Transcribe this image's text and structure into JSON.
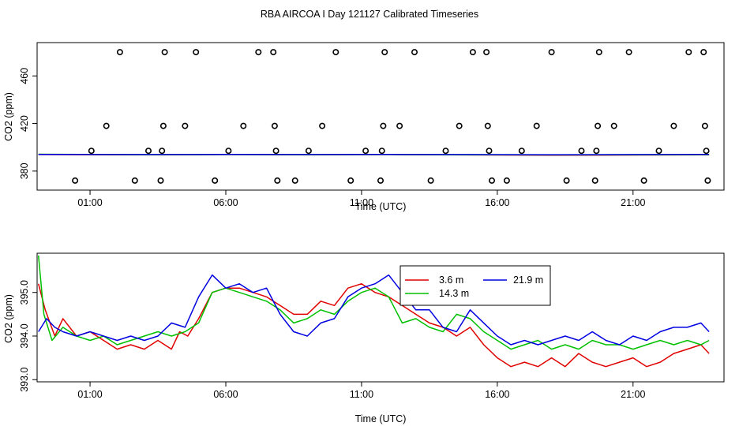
{
  "title": "RBA AIRCOA I  Day 121127  Calibrated Timeseries",
  "colors": {
    "red": "#e00000",
    "green": "#00c000",
    "blue": "#0000e0",
    "black": "#000000"
  },
  "chart_data": [
    {
      "type": "scatter+line",
      "xlabel": "Time (UTC)",
      "ylabel": "CO2 (ppm)",
      "xlim": [
        -0.95,
        24.35
      ],
      "ylim": [
        364,
        488
      ],
      "x_ticks": [
        1,
        6,
        11,
        16,
        21
      ],
      "x_tick_labels": [
        "01:00",
        "06:00",
        "11:00",
        "16:00",
        "21:00"
      ],
      "y_ticks": [
        380,
        420,
        460
      ],
      "y_tick_labels": [
        "380",
        "420",
        "460"
      ],
      "calibration_points": {
        "marker": "open-circle",
        "points": [
          [
            0.45,
            372
          ],
          [
            1.05,
            397
          ],
          [
            1.6,
            418
          ],
          [
            2.1,
            480
          ],
          [
            2.65,
            372
          ],
          [
            3.15,
            397
          ],
          [
            3.6,
            372
          ],
          [
            3.65,
            397
          ],
          [
            3.7,
            418
          ],
          [
            3.75,
            480
          ],
          [
            4.5,
            418
          ],
          [
            4.9,
            480
          ],
          [
            5.6,
            372
          ],
          [
            6.1,
            397
          ],
          [
            6.65,
            418
          ],
          [
            7.2,
            480
          ],
          [
            7.75,
            480
          ],
          [
            7.8,
            418
          ],
          [
            7.85,
            397
          ],
          [
            7.9,
            372
          ],
          [
            8.55,
            372
          ],
          [
            9.05,
            397
          ],
          [
            9.55,
            418
          ],
          [
            10.05,
            480
          ],
          [
            10.6,
            372
          ],
          [
            11.15,
            397
          ],
          [
            11.7,
            372
          ],
          [
            11.75,
            397
          ],
          [
            11.8,
            418
          ],
          [
            11.85,
            480
          ],
          [
            12.4,
            418
          ],
          [
            12.95,
            480
          ],
          [
            13.55,
            372
          ],
          [
            14.1,
            397
          ],
          [
            14.6,
            418
          ],
          [
            15.1,
            480
          ],
          [
            15.6,
            480
          ],
          [
            15.65,
            418
          ],
          [
            15.7,
            397
          ],
          [
            15.8,
            372
          ],
          [
            16.35,
            372
          ],
          [
            16.9,
            397
          ],
          [
            17.45,
            418
          ],
          [
            18.0,
            480
          ],
          [
            18.55,
            372
          ],
          [
            19.1,
            397
          ],
          [
            19.6,
            372
          ],
          [
            19.65,
            397
          ],
          [
            19.7,
            418
          ],
          [
            19.75,
            480
          ],
          [
            20.3,
            418
          ],
          [
            20.85,
            480
          ],
          [
            21.4,
            372
          ],
          [
            21.95,
            397
          ],
          [
            22.5,
            418
          ],
          [
            23.05,
            480
          ],
          [
            23.6,
            480
          ],
          [
            23.65,
            418
          ],
          [
            23.7,
            397
          ],
          [
            23.75,
            372
          ]
        ]
      },
      "series": [
        {
          "name": "3.6 m",
          "color": "#e00000",
          "x": [
            -0.9,
            3,
            6,
            9,
            12,
            15,
            18,
            21,
            23.8
          ],
          "y": [
            393.9,
            393.7,
            393.9,
            393.8,
            393.9,
            393.6,
            393.4,
            393.5,
            393.7
          ]
        },
        {
          "name": "14.3 m",
          "color": "#00c000",
          "x": [
            -0.9,
            3,
            6,
            9,
            12,
            15,
            18,
            21,
            23.8
          ],
          "y": [
            394.2,
            393.8,
            393.9,
            393.8,
            393.9,
            393.7,
            393.6,
            393.7,
            393.8
          ]
        },
        {
          "name": "21.9 m",
          "color": "#0000e0",
          "x": [
            -0.9,
            3,
            6,
            9,
            12,
            15,
            18,
            21,
            23.8
          ],
          "y": [
            394.0,
            393.9,
            394.0,
            393.9,
            394.0,
            393.9,
            393.8,
            393.9,
            394.0
          ]
        }
      ]
    },
    {
      "type": "line",
      "xlabel": "Time (UTC)",
      "ylabel": "CO2 (ppm)",
      "xlim": [
        -0.95,
        24.35
      ],
      "ylim": [
        392.95,
        395.9
      ],
      "x_ticks": [
        1,
        6,
        11,
        16,
        21
      ],
      "x_tick_labels": [
        "01:00",
        "06:00",
        "11:00",
        "16:00",
        "21:00"
      ],
      "y_ticks": [
        393.0,
        394.0,
        395.0
      ],
      "y_tick_labels": [
        "393.0",
        "394.0",
        "395.0"
      ],
      "legend": {
        "position": "top-center",
        "entries": [
          "3.6 m",
          "14.3 m",
          "21.9 m"
        ]
      },
      "series": [
        {
          "name": "3.6 m",
          "color": "#e00000",
          "x": [
            -0.9,
            -0.65,
            -0.3,
            0,
            0.5,
            1,
            1.5,
            2,
            2.5,
            3,
            3.5,
            4,
            4.3,
            4.6,
            5,
            5.5,
            6,
            6.5,
            7,
            7.5,
            8,
            8.5,
            9,
            9.5,
            10,
            10.5,
            11,
            11.5,
            12,
            12.5,
            13,
            13.5,
            14,
            14.5,
            15,
            15.5,
            16,
            16.5,
            17,
            17.5,
            18,
            18.5,
            19,
            19.5,
            20,
            20.5,
            21,
            21.5,
            22,
            22.5,
            23,
            23.5,
            23.8
          ],
          "y": [
            395.2,
            394.6,
            394.0,
            394.4,
            394.0,
            394.1,
            393.9,
            393.7,
            393.8,
            393.7,
            393.9,
            393.7,
            394.1,
            394.0,
            394.4,
            395.0,
            395.1,
            395.1,
            395.0,
            394.9,
            394.7,
            394.5,
            394.5,
            394.8,
            394.7,
            395.1,
            395.2,
            395.0,
            394.9,
            394.7,
            394.5,
            394.3,
            394.2,
            394.0,
            394.2,
            393.8,
            393.5,
            393.3,
            393.4,
            393.3,
            393.5,
            393.3,
            393.6,
            393.4,
            393.3,
            393.4,
            393.5,
            393.3,
            393.4,
            393.6,
            393.7,
            393.8,
            393.6
          ]
        },
        {
          "name": "14.3 m",
          "color": "#00c000",
          "x": [
            -0.9,
            -0.7,
            -0.4,
            0,
            0.5,
            1,
            1.5,
            2,
            2.5,
            3,
            3.5,
            4,
            4.5,
            5,
            5.5,
            6,
            6.5,
            7,
            7.5,
            8,
            8.5,
            9,
            9.5,
            10,
            10.5,
            11,
            11.5,
            12,
            12.5,
            13,
            13.5,
            14,
            14.5,
            15,
            15.5,
            16,
            16.5,
            17,
            17.5,
            18,
            18.5,
            19,
            19.5,
            20,
            20.5,
            21,
            21.5,
            22,
            22.5,
            23,
            23.5,
            23.8
          ],
          "y": [
            395.85,
            394.5,
            393.9,
            394.2,
            394.0,
            393.9,
            394.0,
            393.8,
            393.9,
            394.0,
            394.1,
            394.0,
            394.1,
            394.3,
            395.0,
            395.1,
            395.0,
            394.9,
            394.8,
            394.6,
            394.3,
            394.4,
            394.6,
            394.5,
            394.8,
            395.0,
            395.1,
            394.9,
            394.3,
            394.4,
            394.2,
            394.1,
            394.5,
            394.4,
            394.1,
            393.9,
            393.7,
            393.8,
            393.9,
            393.7,
            393.8,
            393.7,
            393.9,
            393.8,
            393.8,
            393.7,
            393.8,
            393.9,
            393.8,
            393.9,
            393.8,
            393.9
          ]
        },
        {
          "name": "21.9 m",
          "color": "#0000e0",
          "x": [
            -0.9,
            -0.6,
            -0.3,
            0,
            0.5,
            1,
            1.5,
            2,
            2.5,
            3,
            3.5,
            4,
            4.5,
            5,
            5.5,
            6,
            6.5,
            7,
            7.5,
            8,
            8.5,
            9,
            9.5,
            10,
            10.5,
            11,
            11.5,
            12,
            12.5,
            13,
            13.5,
            14,
            14.5,
            15,
            15.5,
            16,
            16.5,
            17,
            17.5,
            18,
            18.5,
            19,
            19.5,
            20,
            20.5,
            21,
            21.5,
            22,
            22.5,
            23,
            23.5,
            23.8
          ],
          "y": [
            394.1,
            394.4,
            394.2,
            394.1,
            394.0,
            394.1,
            394.0,
            393.9,
            394.0,
            393.9,
            394.0,
            394.3,
            394.2,
            394.9,
            395.4,
            395.1,
            395.2,
            395.0,
            395.1,
            394.5,
            394.1,
            394.0,
            394.3,
            394.4,
            394.9,
            395.1,
            395.2,
            395.4,
            395.0,
            394.6,
            394.6,
            394.2,
            394.1,
            394.6,
            394.3,
            394.0,
            393.8,
            393.9,
            393.8,
            393.9,
            394.0,
            393.9,
            394.1,
            393.9,
            393.8,
            394.0,
            393.9,
            394.1,
            394.2,
            394.2,
            394.3,
            394.1
          ]
        }
      ]
    }
  ]
}
